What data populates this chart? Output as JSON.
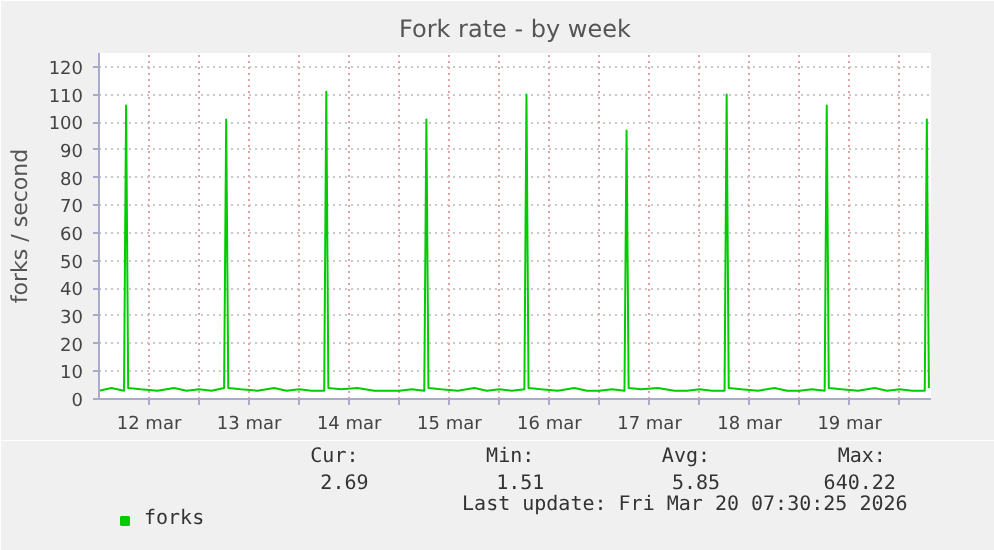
{
  "chart_data": {
    "type": "line",
    "title": "Fork rate - by week",
    "ylabel": "forks / second",
    "xlim": [
      "2026-03-12T00:00",
      "2026-03-20T07:30"
    ],
    "xticks": [
      {
        "value": "2026-03-12T12:00",
        "label": "12 mar"
      },
      {
        "value": "2026-03-13T00:00",
        "label": null
      },
      {
        "value": "2026-03-13T12:00",
        "label": "13 mar"
      },
      {
        "value": "2026-03-14T00:00",
        "label": null
      },
      {
        "value": "2026-03-14T12:00",
        "label": "14 mar"
      },
      {
        "value": "2026-03-15T00:00",
        "label": null
      },
      {
        "value": "2026-03-15T12:00",
        "label": "15 mar"
      },
      {
        "value": "2026-03-16T00:00",
        "label": null
      },
      {
        "value": "2026-03-16T12:00",
        "label": "16 mar"
      },
      {
        "value": "2026-03-17T00:00",
        "label": null
      },
      {
        "value": "2026-03-17T12:00",
        "label": "17 mar"
      },
      {
        "value": "2026-03-18T00:00",
        "label": null
      },
      {
        "value": "2026-03-18T12:00",
        "label": "18 mar"
      },
      {
        "value": "2026-03-19T00:00",
        "label": null
      },
      {
        "value": "2026-03-19T12:00",
        "label": "19 mar"
      },
      {
        "value": "2026-03-20T00:00",
        "label": null
      }
    ],
    "ylim": [
      0,
      125
    ],
    "yticks": [
      0,
      10,
      20,
      30,
      40,
      50,
      60,
      70,
      80,
      90,
      100,
      110,
      120
    ],
    "grid": true,
    "legend": "bottom left",
    "marker": "none",
    "line_style": "solid",
    "series": [
      {
        "name": "forks",
        "color": "#00cc00",
        "x": [
          "2026-03-12T00:00",
          "2026-03-12T03:00",
          "2026-03-12T06:00",
          "2026-03-12T06:30",
          "2026-03-12T07:00",
          "2026-03-12T10:00",
          "2026-03-12T14:00",
          "2026-03-12T18:00",
          "2026-03-12T21:00",
          "2026-03-13T00:00",
          "2026-03-13T03:00",
          "2026-03-13T06:00",
          "2026-03-13T06:30",
          "2026-03-13T07:00",
          "2026-03-13T10:00",
          "2026-03-13T14:00",
          "2026-03-13T18:00",
          "2026-03-13T21:00",
          "2026-03-14T00:00",
          "2026-03-14T03:00",
          "2026-03-14T06:00",
          "2026-03-14T06:30",
          "2026-03-14T07:00",
          "2026-03-14T10:00",
          "2026-03-14T14:00",
          "2026-03-14T18:00",
          "2026-03-14T21:00",
          "2026-03-15T00:00",
          "2026-03-15T03:00",
          "2026-03-15T06:00",
          "2026-03-15T06:30",
          "2026-03-15T07:00",
          "2026-03-15T10:00",
          "2026-03-15T14:00",
          "2026-03-15T18:00",
          "2026-03-15T21:00",
          "2026-03-16T00:00",
          "2026-03-16T03:00",
          "2026-03-16T06:00",
          "2026-03-16T06:30",
          "2026-03-16T07:00",
          "2026-03-16T10:00",
          "2026-03-16T14:00",
          "2026-03-16T18:00",
          "2026-03-16T21:00",
          "2026-03-17T00:00",
          "2026-03-17T03:00",
          "2026-03-17T06:00",
          "2026-03-17T06:30",
          "2026-03-17T07:00",
          "2026-03-17T10:00",
          "2026-03-17T14:00",
          "2026-03-17T18:00",
          "2026-03-17T21:00",
          "2026-03-18T00:00",
          "2026-03-18T03:00",
          "2026-03-18T06:00",
          "2026-03-18T06:30",
          "2026-03-18T07:00",
          "2026-03-18T10:00",
          "2026-03-18T14:00",
          "2026-03-18T18:00",
          "2026-03-18T21:00",
          "2026-03-19T00:00",
          "2026-03-19T03:00",
          "2026-03-19T06:00",
          "2026-03-19T06:30",
          "2026-03-19T07:00",
          "2026-03-19T10:00",
          "2026-03-19T14:00",
          "2026-03-19T18:00",
          "2026-03-19T21:00",
          "2026-03-20T00:00",
          "2026-03-20T03:00",
          "2026-03-20T06:00",
          "2026-03-20T06:30",
          "2026-03-20T07:00"
        ],
        "values": [
          3,
          4,
          3,
          106,
          4,
          3.5,
          3,
          4,
          3,
          3.5,
          3,
          4,
          101,
          4,
          3.5,
          3,
          4,
          3,
          3.5,
          3,
          3,
          111,
          4,
          3.5,
          4,
          3,
          3,
          3,
          3.5,
          3,
          101,
          4,
          3.5,
          3,
          4,
          3,
          3.5,
          3,
          3.5,
          110,
          4,
          3.5,
          3,
          4,
          3,
          3,
          3.5,
          3,
          97,
          4,
          3.5,
          4,
          3,
          3,
          3.5,
          3,
          3,
          110,
          4,
          3.5,
          3,
          4,
          3,
          3,
          3.5,
          3,
          106,
          4,
          3.5,
          3,
          4,
          3,
          3.5,
          3,
          3,
          101,
          4
        ]
      }
    ],
    "annotations": [
      "Cur:",
      "Min:",
      "Avg:",
      "Max:",
      "2.69",
      "1.51",
      "5.85",
      "640.22",
      "Last update: Fri Mar 20 07:30:25 2026"
    ]
  }
}
